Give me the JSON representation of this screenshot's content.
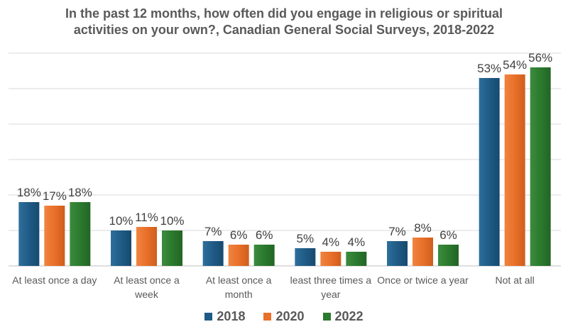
{
  "chart_data": {
    "type": "bar",
    "title_lines": [
      "In the past 12 months, how often did you engage in religious or spiritual",
      "activities on your own?, Canadian General Social Surveys, 2018-2022"
    ],
    "categories": [
      [
        "At least once a day"
      ],
      [
        "At least once a",
        "week"
      ],
      [
        "At least once a",
        "month"
      ],
      [
        "least three times a",
        "year"
      ],
      [
        "Once or twice a year"
      ],
      [
        "Not at all"
      ]
    ],
    "series": [
      {
        "name": "2018",
        "color": "#1f5b86",
        "values": [
          18,
          10,
          7,
          5,
          7,
          53
        ]
      },
      {
        "name": "2020",
        "color": "#e8702a",
        "values": [
          17,
          11,
          6,
          4,
          8,
          54
        ]
      },
      {
        "name": "2022",
        "color": "#2b7a2e",
        "values": [
          18,
          10,
          6,
          4,
          6,
          56
        ]
      }
    ],
    "value_suffix": "%",
    "xlabel": "",
    "ylabel": "",
    "ylim": [
      0,
      60
    ],
    "gridlines": true,
    "legend_position": "bottom"
  }
}
